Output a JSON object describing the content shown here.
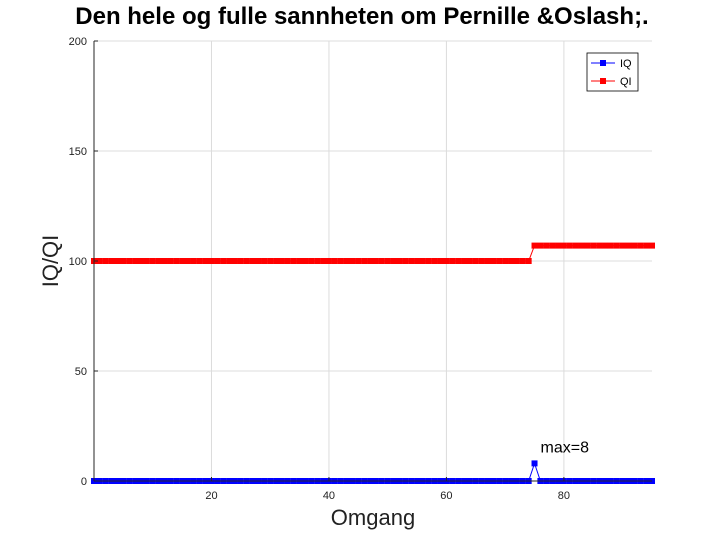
{
  "chart_data": {
    "type": "line",
    "title": "Den hele og fulle sannheten om Pernille &Oslash;.",
    "xlabel": "Omgang",
    "ylabel": "IQ/QI",
    "xlim": [
      0,
      95
    ],
    "ylim": [
      0,
      200
    ],
    "xticks": [
      20,
      40,
      60,
      80
    ],
    "yticks": [
      0,
      50,
      100,
      150,
      200
    ],
    "grid": true,
    "legend_position": "top-right",
    "annotation": {
      "text": "max=8",
      "x": 75,
      "y": 8
    },
    "series": [
      {
        "name": "IQ",
        "color": "#0000ff",
        "marker": "square",
        "x": [
          0,
          1,
          2,
          3,
          4,
          5,
          6,
          7,
          8,
          9,
          10,
          11,
          12,
          13,
          14,
          15,
          16,
          17,
          18,
          19,
          20,
          21,
          22,
          23,
          24,
          25,
          26,
          27,
          28,
          29,
          30,
          31,
          32,
          33,
          34,
          35,
          36,
          37,
          38,
          39,
          40,
          41,
          42,
          43,
          44,
          45,
          46,
          47,
          48,
          49,
          50,
          51,
          52,
          53,
          54,
          55,
          56,
          57,
          58,
          59,
          60,
          61,
          62,
          63,
          64,
          65,
          66,
          67,
          68,
          69,
          70,
          71,
          72,
          73,
          74,
          75,
          76,
          77,
          78,
          79,
          80,
          81,
          82,
          83,
          84,
          85,
          86,
          87,
          88,
          89,
          90,
          91,
          92,
          93,
          94,
          95
        ],
        "values": [
          0,
          0,
          0,
          0,
          0,
          0,
          0,
          0,
          0,
          0,
          0,
          0,
          0,
          0,
          0,
          0,
          0,
          0,
          0,
          0,
          0,
          0,
          0,
          0,
          0,
          0,
          0,
          0,
          0,
          0,
          0,
          0,
          0,
          0,
          0,
          0,
          0,
          0,
          0,
          0,
          0,
          0,
          0,
          0,
          0,
          0,
          0,
          0,
          0,
          0,
          0,
          0,
          0,
          0,
          0,
          0,
          0,
          0,
          0,
          0,
          0,
          0,
          0,
          0,
          0,
          0,
          0,
          0,
          0,
          0,
          0,
          0,
          0,
          0,
          0,
          8,
          0,
          0,
          0,
          0,
          0,
          0,
          0,
          0,
          0,
          0,
          0,
          0,
          0,
          0,
          0,
          0,
          0,
          0,
          0,
          0
        ]
      },
      {
        "name": "QI",
        "color": "#ff0000",
        "marker": "square",
        "x": [
          0,
          1,
          2,
          3,
          4,
          5,
          6,
          7,
          8,
          9,
          10,
          11,
          12,
          13,
          14,
          15,
          16,
          17,
          18,
          19,
          20,
          21,
          22,
          23,
          24,
          25,
          26,
          27,
          28,
          29,
          30,
          31,
          32,
          33,
          34,
          35,
          36,
          37,
          38,
          39,
          40,
          41,
          42,
          43,
          44,
          45,
          46,
          47,
          48,
          49,
          50,
          51,
          52,
          53,
          54,
          55,
          56,
          57,
          58,
          59,
          60,
          61,
          62,
          63,
          64,
          65,
          66,
          67,
          68,
          69,
          70,
          71,
          72,
          73,
          74,
          75,
          76,
          77,
          78,
          79,
          80,
          81,
          82,
          83,
          84,
          85,
          86,
          87,
          88,
          89,
          90,
          91,
          92,
          93,
          94,
          95
        ],
        "values": [
          100,
          100,
          100,
          100,
          100,
          100,
          100,
          100,
          100,
          100,
          100,
          100,
          100,
          100,
          100,
          100,
          100,
          100,
          100,
          100,
          100,
          100,
          100,
          100,
          100,
          100,
          100,
          100,
          100,
          100,
          100,
          100,
          100,
          100,
          100,
          100,
          100,
          100,
          100,
          100,
          100,
          100,
          100,
          100,
          100,
          100,
          100,
          100,
          100,
          100,
          100,
          100,
          100,
          100,
          100,
          100,
          100,
          100,
          100,
          100,
          100,
          100,
          100,
          100,
          100,
          100,
          100,
          100,
          100,
          100,
          100,
          100,
          100,
          100,
          100,
          107,
          107,
          107,
          107,
          107,
          107,
          107,
          107,
          107,
          107,
          107,
          107,
          107,
          107,
          107,
          107,
          107,
          107,
          107,
          107,
          107
        ]
      }
    ]
  }
}
